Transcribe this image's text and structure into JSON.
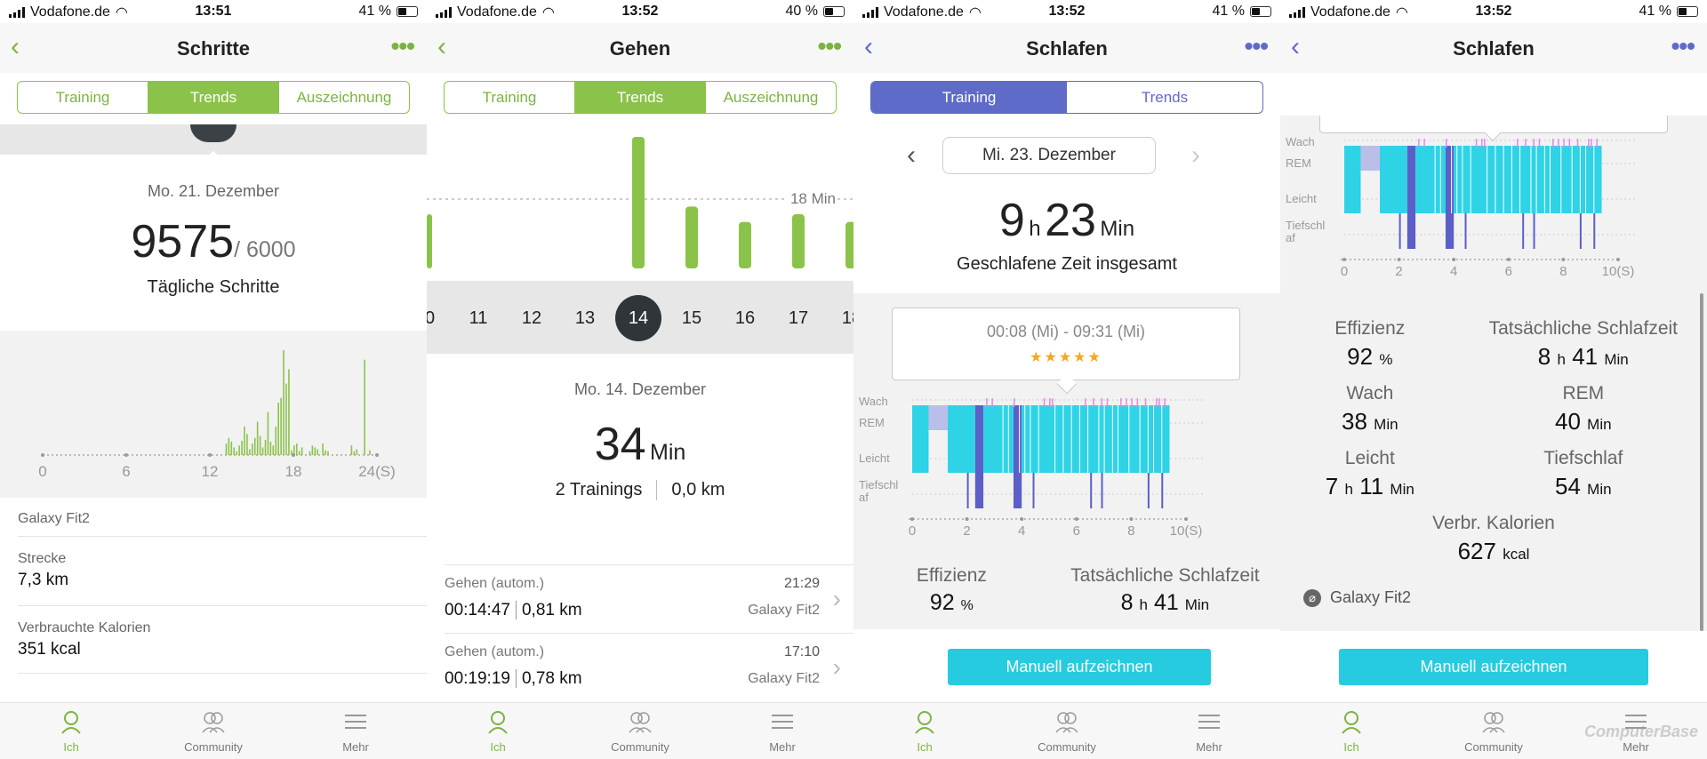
{
  "colors": {
    "green": "#8bc34a",
    "blue": "#5e6bc9",
    "cyan": "#26cbdf",
    "sleep_deep": "#5c5fc8",
    "sleep_light": "#2fd3e6",
    "sleep_rem": "#b9bfe8",
    "sleep_wake": "#e08ae6"
  },
  "nav": {
    "ich": "Ich",
    "community": "Community",
    "mehr": "Mehr"
  },
  "tabs": {
    "training": "Training",
    "trends": "Trends",
    "auszeichnung": "Auszeichnung"
  },
  "s1": {
    "status": {
      "carrier": "Vodafone.de",
      "time": "13:51",
      "battery": "41 %",
      "battery_level": 0.41
    },
    "title": "Schritte",
    "date": "Mo. 21. Dezember",
    "steps": "9575",
    "goal": "/ 6000",
    "goal_label": "Tägliche Schritte",
    "chart_data": {
      "type": "bar",
      "x_ticks": [
        "0",
        "6",
        "12",
        "18",
        "24(S)"
      ],
      "values": [
        0,
        0,
        0,
        0,
        0,
        0,
        0,
        0,
        0,
        0,
        0,
        0,
        0,
        0,
        0,
        0,
        0,
        0,
        0,
        0,
        0,
        0,
        0,
        0,
        0,
        0,
        0,
        0,
        0,
        0,
        0,
        0,
        0,
        0,
        0,
        0,
        0,
        0,
        0,
        0,
        0,
        0,
        0,
        0,
        0,
        0,
        0,
        0,
        0,
        0,
        0,
        0,
        0,
        0,
        0,
        0,
        0,
        0,
        0,
        0,
        0,
        0,
        0,
        0,
        0,
        0,
        0,
        0,
        0,
        0,
        12,
        18,
        14,
        8,
        4,
        10,
        15,
        30,
        22,
        6,
        12,
        18,
        35,
        20,
        8,
        16,
        45,
        14,
        10,
        30,
        55,
        60,
        110,
        75,
        90,
        5,
        10,
        12,
        4,
        8,
        0,
        0,
        4,
        10,
        8,
        6,
        0,
        12,
        5,
        4,
        0,
        0,
        0,
        0,
        0,
        0,
        0,
        0,
        10,
        4,
        6,
        0,
        0,
        100,
        0,
        5,
        0,
        0
      ]
    },
    "device": "Galaxy Fit2",
    "distance_label": "Strecke",
    "distance": "7,3 km",
    "cal_label": "Verbrauchte Kalorien",
    "cal": "351 kcal"
  },
  "s2": {
    "status": {
      "carrier": "Vodafone.de",
      "time": "13:52",
      "battery": "40 %",
      "battery_level": 0.4
    },
    "title": "Gehen",
    "ref_label": "18 Min",
    "chart_data": {
      "type": "bar",
      "unit": "Min",
      "days": [
        "10",
        "11",
        "12",
        "13",
        "14",
        "15",
        "16",
        "17",
        "18"
      ],
      "values": [
        null,
        null,
        null,
        null,
        34,
        16,
        12,
        14,
        12
      ],
      "partial_left_value": 14,
      "selected": "14"
    },
    "date": "Mo. 14. Dezember",
    "minutes": "34",
    "unit": "Min",
    "trainings": "2 Trainings",
    "km": "0,0 km",
    "sessions": [
      {
        "name": "Gehen (autom.)",
        "time": "21:29",
        "duration": "00:14:47",
        "dist": "0,81 km",
        "device": "Galaxy Fit2"
      },
      {
        "name": "Gehen (autom.)",
        "time": "17:10",
        "duration": "00:19:19",
        "dist": "0,78 km",
        "device": "Galaxy Fit2"
      }
    ]
  },
  "s3": {
    "status": {
      "carrier": "Vodafone.de",
      "time": "13:52",
      "battery": "41 %",
      "battery_level": 0.41
    },
    "title": "Schlafen",
    "date": "Mi. 23. Dezember",
    "hours": "9",
    "h": "h",
    "mins": "23",
    "min": "Min",
    "total_label": "Geschlafene Zeit insgesamt",
    "tooltip": "00:08 (Mi) - 09:31 (Mi)",
    "stars": "★★★★★",
    "stage_labels": {
      "wach": "Wach",
      "rem": "REM",
      "leicht": "Leicht",
      "tief1": "Tiefschl",
      "tief2": "af"
    },
    "chart_data": {
      "type": "sleep-stages",
      "x_ticks": [
        "0",
        "2",
        "4",
        "6",
        "8",
        "10(S)"
      ],
      "xlim": [
        0,
        10
      ],
      "stages": [
        {
          "stage": "leicht",
          "from": 0,
          "to": 0.6
        },
        {
          "stage": "rem",
          "from": 0.6,
          "to": 1.3
        },
        {
          "stage": "leicht",
          "from": 1.3,
          "to": 2.3
        },
        {
          "stage": "tief",
          "from": 2.3,
          "to": 2.6
        },
        {
          "stage": "leicht",
          "from": 2.6,
          "to": 3.7
        },
        {
          "stage": "tief",
          "from": 3.7,
          "to": 4.0
        },
        {
          "stage": "leicht",
          "from": 4.0,
          "to": 9.4
        }
      ]
    },
    "eff_label": "Effizienz",
    "eff": "92",
    "pct": "%",
    "real_label": "Tatsächliche Schlafzeit",
    "real_h": "8",
    "real_m": "41",
    "btn": "Manuell aufzeichnen"
  },
  "s4": {
    "status": {
      "carrier": "Vodafone.de",
      "time": "13:52",
      "battery": "41 %",
      "battery_level": 0.41
    },
    "title": "Schlafen",
    "eff_label": "Effizienz",
    "eff": "92",
    "pct": "%",
    "real_label": "Tatsächliche Schlafzeit",
    "real_h": "8",
    "real_m": "41",
    "wach_label": "Wach",
    "wach": "38",
    "rem_label": "REM",
    "rem": "40",
    "leicht_label": "Leicht",
    "leicht_h": "7",
    "leicht_m": "11",
    "tief_label": "Tiefschlaf",
    "tief": "54",
    "kal_label": "Verbr. Kalorien",
    "kal": "627",
    "kcal": "kcal",
    "device": "Galaxy Fit2",
    "h": "h",
    "min": "Min",
    "btn": "Manuell aufzeichnen",
    "watermark": "ComputerBase"
  }
}
